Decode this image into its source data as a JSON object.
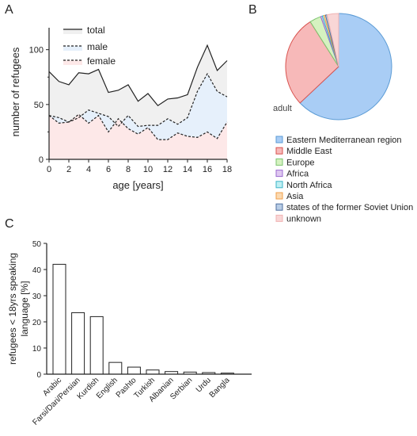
{
  "panels": {
    "a": "A",
    "b": "B",
    "c": "C"
  },
  "chart_data": [
    {
      "type": "area",
      "panel": "A",
      "xlabel": "age [years]",
      "ylabel": "number of refugees",
      "xlim": [
        0,
        18
      ],
      "ylim": [
        0,
        120
      ],
      "xticks": [
        0,
        2,
        4,
        6,
        8,
        10,
        12,
        14,
        16,
        18
      ],
      "yticks": [
        0,
        50,
        100
      ],
      "legend_position": "top-left",
      "x": [
        0,
        1,
        2,
        3,
        4,
        5,
        6,
        7,
        8,
        9,
        10,
        11,
        12,
        13,
        14,
        15,
        16,
        17,
        18
      ],
      "series": [
        {
          "name": "total",
          "line": "solid",
          "fill": "#f0f0f0",
          "color": "#222222",
          "values": [
            80,
            71,
            68,
            79,
            78,
            82,
            61,
            63,
            68,
            53,
            60,
            49,
            55,
            56,
            59,
            84,
            104,
            81,
            90
          ]
        },
        {
          "name": "male",
          "line": "dashed",
          "fill": "#e6f0fb",
          "color": "#222222",
          "values": [
            40,
            38,
            34,
            38,
            45,
            42,
            39,
            30,
            40,
            30,
            31,
            31,
            37,
            32,
            38,
            62,
            78,
            62,
            57
          ]
        },
        {
          "name": "female",
          "line": "dashed",
          "fill": "#fde8e8",
          "color": "#222222",
          "values": [
            40,
            33,
            34,
            41,
            33,
            40,
            25,
            37,
            28,
            23,
            29,
            18,
            18,
            24,
            21,
            20,
            25,
            19,
            34
          ]
        }
      ]
    },
    {
      "type": "pie",
      "panel": "B",
      "annotation": "adult",
      "legend_position": "bottom",
      "slices": [
        {
          "name": "Eastern Mediterranean region",
          "value": 63,
          "color": "#a9cdf5",
          "edge": "#5b9bd5"
        },
        {
          "name": "Middle East",
          "value": 28,
          "color": "#f7b9b9",
          "edge": "#d9534f"
        },
        {
          "name": "Europe",
          "value": 3.5,
          "color": "#d5f2c0",
          "edge": "#7cc36f"
        },
        {
          "name": "Africa",
          "value": 0.5,
          "color": "#dfc8f0",
          "edge": "#9b6bd0"
        },
        {
          "name": "North Africa",
          "value": 0.5,
          "color": "#bfeff2",
          "edge": "#3cb4c8"
        },
        {
          "name": "Asia",
          "value": 0.5,
          "color": "#fbd9b0",
          "edge": "#f0a04b"
        },
        {
          "name": "states of the former Soviet Union",
          "value": 0.5,
          "color": "#b8cde6",
          "edge": "#4f6f9f"
        },
        {
          "name": "unknown",
          "value": 3.5,
          "color": "#f9d6d6",
          "edge": "#f0b4b4"
        }
      ]
    },
    {
      "type": "bar",
      "panel": "C",
      "ylabel": "refugees < 18yrs speaking language [%]",
      "ylim": [
        0,
        50
      ],
      "yticks": [
        0,
        10,
        20,
        30,
        40,
        50
      ],
      "categories": [
        "Arabic",
        "Farsi/Dari/Persian",
        "Kurdish",
        "English",
        "Pashto",
        "Turkish",
        "Albanian",
        "Serbian",
        "Urdu",
        "Bangla"
      ],
      "values": [
        42,
        23.5,
        22,
        4.5,
        2.7,
        1.6,
        1,
        0.8,
        0.6,
        0.4
      ]
    }
  ]
}
